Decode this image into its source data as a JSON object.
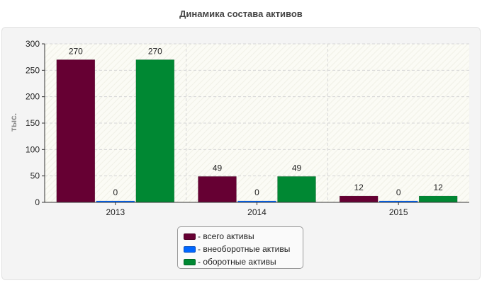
{
  "chart_data": {
    "type": "bar",
    "title": "Динамика состава активов",
    "ylabel": "тыс.",
    "xlabel": "",
    "categories": [
      "2013",
      "2014",
      "2015"
    ],
    "ylim": [
      0,
      300
    ],
    "yticks": [
      0,
      50,
      100,
      150,
      200,
      250,
      300
    ],
    "grid": true,
    "legend_position": "bottom",
    "series": [
      {
        "name": "- всего активы",
        "color": "#660033",
        "values": [
          270,
          49,
          12
        ]
      },
      {
        "name": "- внеоборотные активы",
        "color": "#0066ff",
        "values": [
          0,
          0,
          0
        ]
      },
      {
        "name": "- оборотные активы",
        "color": "#008833",
        "values": [
          270,
          49,
          12
        ]
      }
    ]
  }
}
